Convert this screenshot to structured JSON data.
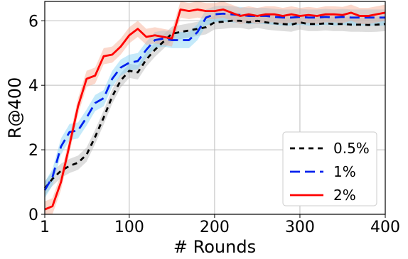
{
  "chart_data": {
    "type": "line",
    "xlabel": "# Rounds",
    "ylabel": "R@400",
    "xlim": [
      1,
      400
    ],
    "ylim": [
      0,
      6.6
    ],
    "x_ticks": [
      1,
      100,
      200,
      300,
      400
    ],
    "y_ticks": [
      0,
      2,
      4,
      6
    ],
    "grid": true,
    "legend_position": "bottom-right",
    "series": [
      {
        "name": "0.5%",
        "color": "#000000",
        "style": "dashed-short",
        "band_color": "#b4b4b4",
        "x": [
          1,
          10,
          20,
          30,
          40,
          50,
          60,
          70,
          80,
          90,
          100,
          110,
          120,
          130,
          140,
          150,
          160,
          170,
          180,
          190,
          200,
          210,
          220,
          230,
          240,
          250,
          260,
          270,
          280,
          290,
          300,
          310,
          320,
          330,
          340,
          350,
          360,
          370,
          380,
          390,
          400
        ],
        "y": [
          0.8,
          1.1,
          1.35,
          1.5,
          1.6,
          1.85,
          2.4,
          3.0,
          3.65,
          4.15,
          4.45,
          4.4,
          4.8,
          5.1,
          5.35,
          5.6,
          5.65,
          5.7,
          5.75,
          5.8,
          5.95,
          5.97,
          6.0,
          6.0,
          5.95,
          6.0,
          5.95,
          5.92,
          5.9,
          5.88,
          5.95,
          5.9,
          5.9,
          5.92,
          5.9,
          5.9,
          5.88,
          5.88,
          5.87,
          5.88,
          5.9
        ],
        "band": 0.22
      },
      {
        "name": "1%",
        "color": "#0022ee",
        "style": "dashed-long",
        "band_color": "#7fd0f5",
        "x": [
          1,
          10,
          20,
          30,
          40,
          50,
          60,
          70,
          80,
          90,
          100,
          110,
          120,
          130,
          140,
          150,
          160,
          170,
          180,
          190,
          200,
          210,
          220,
          230,
          240,
          250,
          260,
          270,
          280,
          290,
          300,
          310,
          320,
          330,
          340,
          350,
          360,
          370,
          380,
          390,
          400
        ],
        "y": [
          0.75,
          1.15,
          2.1,
          2.55,
          2.6,
          3.0,
          3.45,
          3.6,
          4.2,
          4.55,
          4.7,
          4.75,
          5.1,
          5.4,
          5.45,
          5.4,
          5.4,
          5.4,
          5.65,
          6.1,
          6.2,
          6.22,
          6.2,
          6.18,
          6.15,
          6.15,
          6.15,
          6.12,
          6.1,
          6.1,
          6.12,
          6.1,
          6.1,
          6.12,
          6.1,
          6.12,
          6.1,
          6.1,
          6.1,
          6.1,
          6.1
        ],
        "band": 0.25
      },
      {
        "name": "2%",
        "color": "#ff0000",
        "style": "solid",
        "band_color": "#f7a98f",
        "x": [
          1,
          10,
          20,
          30,
          40,
          50,
          60,
          70,
          80,
          90,
          100,
          110,
          120,
          130,
          140,
          150,
          160,
          170,
          180,
          190,
          200,
          210,
          220,
          230,
          240,
          250,
          260,
          270,
          280,
          290,
          300,
          310,
          320,
          330,
          340,
          350,
          360,
          370,
          380,
          390,
          400
        ],
        "y": [
          0.15,
          0.25,
          1.0,
          2.15,
          3.35,
          4.2,
          4.3,
          4.9,
          4.95,
          5.2,
          5.55,
          5.75,
          5.5,
          5.55,
          5.5,
          5.45,
          6.35,
          6.3,
          6.35,
          6.3,
          6.3,
          6.35,
          6.25,
          6.15,
          6.2,
          6.15,
          6.2,
          6.2,
          6.15,
          6.2,
          6.15,
          6.18,
          6.15,
          6.2,
          6.2,
          6.18,
          6.25,
          6.15,
          6.15,
          6.2,
          6.25
        ],
        "band": 0.25
      }
    ]
  }
}
